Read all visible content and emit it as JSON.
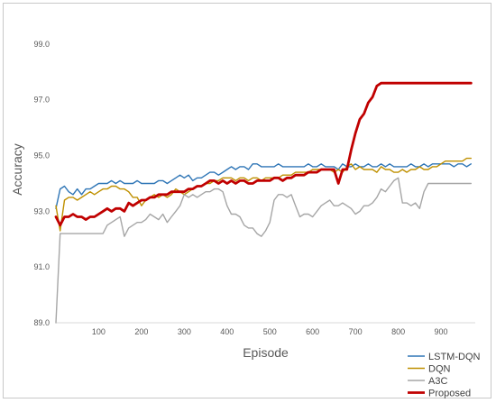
{
  "chart_data": {
    "type": "line",
    "title": "",
    "xlabel": "Episode",
    "ylabel": "Accuracy",
    "xlim": [
      0,
      980
    ],
    "ylim": [
      89,
      100
    ],
    "x_ticks": [
      100,
      200,
      300,
      400,
      500,
      600,
      700,
      800,
      900
    ],
    "x_tick_labels": [
      "100",
      "200",
      "300",
      "400",
      "500",
      "600",
      "700",
      "800",
      "900"
    ],
    "y_ticks": [
      89,
      91,
      93,
      95,
      97,
      99
    ],
    "y_tick_labels": [
      "89.0",
      "91.0",
      "93.0",
      "95.0",
      "97.0",
      "99.0"
    ],
    "grid": false,
    "legend_position": "bottom-right",
    "series": [
      {
        "name": "LSTM-DQN",
        "color": "#2E75B6",
        "x": [
          0,
          10,
          20,
          30,
          40,
          50,
          60,
          70,
          80,
          90,
          100,
          110,
          120,
          130,
          140,
          150,
          160,
          170,
          180,
          190,
          200,
          210,
          220,
          230,
          240,
          250,
          260,
          270,
          280,
          290,
          300,
          310,
          320,
          330,
          340,
          350,
          360,
          370,
          380,
          390,
          400,
          410,
          420,
          430,
          440,
          450,
          460,
          470,
          480,
          490,
          500,
          510,
          520,
          530,
          540,
          550,
          560,
          570,
          580,
          590,
          600,
          610,
          620,
          630,
          640,
          650,
          660,
          670,
          680,
          690,
          700,
          710,
          720,
          730,
          740,
          750,
          760,
          770,
          780,
          790,
          800,
          810,
          820,
          830,
          840,
          850,
          860,
          870,
          880,
          890,
          900,
          910,
          920,
          930,
          940,
          950,
          960,
          970
        ],
        "y": [
          93.1,
          93.8,
          93.9,
          93.7,
          93.6,
          93.8,
          93.6,
          93.8,
          93.8,
          93.9,
          94.0,
          94.0,
          94.0,
          94.1,
          94.0,
          94.1,
          94.0,
          94.0,
          94.0,
          94.1,
          94.0,
          94.0,
          94.0,
          94.0,
          94.1,
          94.1,
          94.0,
          94.1,
          94.2,
          94.3,
          94.2,
          94.3,
          94.1,
          94.2,
          94.2,
          94.3,
          94.4,
          94.4,
          94.3,
          94.4,
          94.5,
          94.6,
          94.5,
          94.6,
          94.6,
          94.5,
          94.7,
          94.7,
          94.6,
          94.6,
          94.6,
          94.6,
          94.7,
          94.6,
          94.6,
          94.6,
          94.6,
          94.6,
          94.6,
          94.7,
          94.6,
          94.6,
          94.7,
          94.6,
          94.6,
          94.6,
          94.5,
          94.7,
          94.6,
          94.6,
          94.7,
          94.6,
          94.6,
          94.7,
          94.6,
          94.6,
          94.7,
          94.6,
          94.7,
          94.6,
          94.6,
          94.6,
          94.6,
          94.7,
          94.6,
          94.6,
          94.7,
          94.6,
          94.7,
          94.7,
          94.7,
          94.7,
          94.7,
          94.6,
          94.7,
          94.7,
          94.6,
          94.7
        ]
      },
      {
        "name": "DQN",
        "color": "#BF9000",
        "x": [
          0,
          10,
          20,
          30,
          40,
          50,
          60,
          70,
          80,
          90,
          100,
          110,
          120,
          130,
          140,
          150,
          160,
          170,
          180,
          190,
          200,
          210,
          220,
          230,
          240,
          250,
          260,
          270,
          280,
          290,
          300,
          310,
          320,
          330,
          340,
          350,
          360,
          370,
          380,
          390,
          400,
          410,
          420,
          430,
          440,
          450,
          460,
          470,
          480,
          490,
          500,
          510,
          520,
          530,
          540,
          550,
          560,
          570,
          580,
          590,
          600,
          610,
          620,
          630,
          640,
          650,
          660,
          670,
          680,
          690,
          700,
          710,
          720,
          730,
          740,
          750,
          760,
          770,
          780,
          790,
          800,
          810,
          820,
          830,
          840,
          850,
          860,
          870,
          880,
          890,
          900,
          910,
          920,
          930,
          940,
          950,
          960,
          970
        ],
        "y": [
          93.2,
          92.3,
          93.4,
          93.5,
          93.5,
          93.4,
          93.5,
          93.6,
          93.7,
          93.6,
          93.7,
          93.8,
          93.8,
          93.9,
          93.9,
          93.8,
          93.8,
          93.7,
          93.5,
          93.5,
          93.2,
          93.4,
          93.5,
          93.6,
          93.5,
          93.6,
          93.5,
          93.6,
          93.8,
          93.7,
          93.6,
          93.7,
          93.8,
          93.9,
          93.9,
          94.0,
          94.0,
          94.1,
          94.1,
          94.2,
          94.2,
          94.2,
          94.1,
          94.2,
          94.2,
          94.1,
          94.2,
          94.2,
          94.1,
          94.2,
          94.2,
          94.2,
          94.2,
          94.3,
          94.3,
          94.3,
          94.4,
          94.4,
          94.4,
          94.4,
          94.5,
          94.5,
          94.5,
          94.5,
          94.5,
          94.4,
          94.5,
          94.4,
          94.6,
          94.7,
          94.5,
          94.6,
          94.5,
          94.5,
          94.5,
          94.4,
          94.6,
          94.5,
          94.5,
          94.4,
          94.4,
          94.5,
          94.4,
          94.5,
          94.5,
          94.6,
          94.5,
          94.5,
          94.6,
          94.6,
          94.7,
          94.8,
          94.8,
          94.8,
          94.8,
          94.8,
          94.9,
          94.9
        ]
      },
      {
        "name": "A3C",
        "color": "#A6A6A6",
        "x": [
          0,
          10,
          20,
          30,
          40,
          50,
          60,
          70,
          80,
          90,
          100,
          110,
          120,
          130,
          140,
          150,
          160,
          170,
          180,
          190,
          200,
          210,
          220,
          230,
          240,
          250,
          260,
          270,
          280,
          290,
          300,
          310,
          320,
          330,
          340,
          350,
          360,
          370,
          380,
          390,
          400,
          410,
          420,
          430,
          440,
          450,
          460,
          470,
          480,
          490,
          500,
          510,
          520,
          530,
          540,
          550,
          560,
          570,
          580,
          590,
          600,
          610,
          620,
          630,
          640,
          650,
          660,
          670,
          680,
          690,
          700,
          710,
          720,
          730,
          740,
          750,
          760,
          770,
          780,
          790,
          800,
          810,
          820,
          830,
          840,
          850,
          860,
          870,
          880,
          890,
          900,
          910,
          920,
          930,
          940,
          950,
          960,
          970
        ],
        "y": [
          89.0,
          92.2,
          92.2,
          92.2,
          92.2,
          92.2,
          92.2,
          92.2,
          92.2,
          92.2,
          92.2,
          92.2,
          92.5,
          92.6,
          92.7,
          92.8,
          92.1,
          92.4,
          92.5,
          92.6,
          92.6,
          92.7,
          92.9,
          92.8,
          92.7,
          92.9,
          92.6,
          92.8,
          93.0,
          93.2,
          93.6,
          93.5,
          93.6,
          93.5,
          93.6,
          93.7,
          93.7,
          93.8,
          93.8,
          93.7,
          93.2,
          92.9,
          92.9,
          92.8,
          92.5,
          92.4,
          92.4,
          92.2,
          92.1,
          92.3,
          92.6,
          93.4,
          93.6,
          93.6,
          93.5,
          93.6,
          93.2,
          92.8,
          92.9,
          92.9,
          92.8,
          93.0,
          93.2,
          93.3,
          93.4,
          93.2,
          93.2,
          93.3,
          93.2,
          93.1,
          92.9,
          93.0,
          93.2,
          93.2,
          93.3,
          93.5,
          93.8,
          93.7,
          93.9,
          94.1,
          94.2,
          93.3,
          93.3,
          93.2,
          93.3,
          93.1,
          93.7,
          94.0,
          94.0,
          94.0,
          94.0,
          94.0,
          94.0,
          94.0,
          94.0,
          94.0,
          94.0,
          94.0
        ]
      },
      {
        "name": "Proposed",
        "color": "#C00000",
        "x": [
          0,
          10,
          20,
          30,
          40,
          50,
          60,
          70,
          80,
          90,
          100,
          110,
          120,
          130,
          140,
          150,
          160,
          170,
          180,
          190,
          200,
          210,
          220,
          230,
          240,
          250,
          260,
          270,
          280,
          290,
          300,
          310,
          320,
          330,
          340,
          350,
          360,
          370,
          380,
          390,
          400,
          410,
          420,
          430,
          440,
          450,
          460,
          470,
          480,
          490,
          500,
          510,
          520,
          530,
          540,
          550,
          560,
          570,
          580,
          590,
          600,
          610,
          620,
          630,
          640,
          650,
          660,
          670,
          680,
          690,
          700,
          710,
          720,
          730,
          740,
          750,
          760,
          770,
          780,
          790,
          800,
          810,
          820,
          830,
          840,
          850,
          860,
          870,
          880,
          890,
          900,
          910,
          920,
          930,
          940,
          950,
          960,
          970
        ],
        "y": [
          92.8,
          92.5,
          92.8,
          92.8,
          92.9,
          92.8,
          92.8,
          92.7,
          92.8,
          92.8,
          92.9,
          93.0,
          93.1,
          93.0,
          93.1,
          93.1,
          93.0,
          93.3,
          93.2,
          93.3,
          93.4,
          93.4,
          93.5,
          93.5,
          93.6,
          93.6,
          93.6,
          93.7,
          93.7,
          93.7,
          93.7,
          93.8,
          93.8,
          93.9,
          93.9,
          94.0,
          94.1,
          94.1,
          94.0,
          94.1,
          94.0,
          94.1,
          94.0,
          94.1,
          94.1,
          94.0,
          94.0,
          94.1,
          94.1,
          94.1,
          94.1,
          94.2,
          94.2,
          94.1,
          94.2,
          94.2,
          94.3,
          94.3,
          94.3,
          94.4,
          94.4,
          94.4,
          94.5,
          94.5,
          94.5,
          94.5,
          94.0,
          94.5,
          94.5,
          95.2,
          95.8,
          96.3,
          96.5,
          96.9,
          97.1,
          97.5,
          97.6,
          97.6,
          97.6,
          97.6,
          97.6,
          97.6,
          97.6,
          97.6,
          97.6,
          97.6,
          97.6,
          97.6,
          97.6,
          97.6,
          97.6,
          97.6,
          97.6,
          97.6,
          97.6,
          97.6,
          97.6,
          97.6
        ]
      }
    ]
  }
}
